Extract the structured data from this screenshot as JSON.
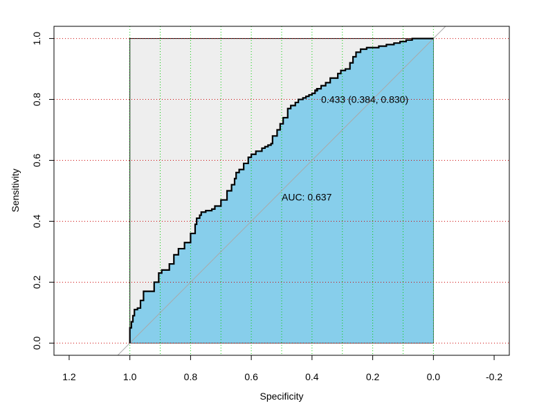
{
  "chart_data": {
    "type": "line",
    "title": "",
    "xlabel": "Specificity",
    "ylabel": "Sensitivity",
    "xlim": [
      1.25,
      -0.25
    ],
    "ylim": [
      -0.04,
      1.04
    ],
    "x_reversed": true,
    "x_ticks": [
      1.2,
      1.0,
      0.8,
      0.6,
      0.4,
      0.2,
      0.0,
      -0.2
    ],
    "x_tick_labels": [
      "1.2",
      "1.0",
      "0.8",
      "0.6",
      "0.4",
      "0.2",
      "0.0",
      "-0.2"
    ],
    "y_ticks": [
      0.0,
      0.2,
      0.4,
      0.6,
      0.8,
      1.0
    ],
    "y_tick_labels": [
      "0.0",
      "0.2",
      "0.4",
      "0.6",
      "0.8",
      "1.0"
    ],
    "grid": {
      "vertical": [
        1.0,
        0.9,
        0.8,
        0.7,
        0.6,
        0.5,
        0.4,
        0.3,
        0.2,
        0.1,
        0.0
      ],
      "horizontal": [
        0.0,
        0.2,
        0.4,
        0.6,
        0.8,
        1.0
      ],
      "vertical_color": "#00cc00",
      "horizontal_color": "#cc0000"
    },
    "colors": {
      "auc_fill": "#87CEEB",
      "bounding_fill": "#EEEEEE",
      "curve": "#000000",
      "diagonal": "#A9A9A9"
    },
    "series": [
      {
        "specificity": [
          1.0,
          1.0,
          0.995,
          0.99,
          0.985,
          0.975,
          0.965,
          0.955,
          0.94,
          0.92,
          0.905,
          0.895,
          0.87,
          0.855,
          0.84,
          0.82,
          0.8,
          0.785,
          0.78,
          0.77,
          0.765,
          0.75,
          0.73,
          0.72,
          0.7,
          0.68,
          0.665,
          0.655,
          0.65,
          0.64,
          0.625,
          0.61,
          0.6,
          0.585,
          0.565,
          0.555,
          0.545,
          0.535,
          0.53,
          0.515,
          0.505,
          0.495,
          0.48,
          0.47,
          0.455,
          0.445,
          0.43,
          0.42,
          0.41,
          0.4,
          0.39,
          0.384,
          0.37,
          0.355,
          0.34,
          0.325,
          0.315,
          0.305,
          0.29,
          0.275,
          0.265,
          0.255,
          0.24,
          0.22,
          0.2,
          0.18,
          0.155,
          0.13,
          0.11,
          0.09,
          0.07,
          0.05,
          0.03,
          0.0
        ],
        "sensitivity": [
          0.0,
          0.03,
          0.05,
          0.07,
          0.09,
          0.11,
          0.115,
          0.14,
          0.17,
          0.17,
          0.2,
          0.23,
          0.24,
          0.26,
          0.29,
          0.31,
          0.33,
          0.36,
          0.39,
          0.41,
          0.42,
          0.43,
          0.435,
          0.44,
          0.45,
          0.47,
          0.5,
          0.52,
          0.54,
          0.56,
          0.57,
          0.59,
          0.61,
          0.62,
          0.63,
          0.64,
          0.645,
          0.65,
          0.655,
          0.68,
          0.7,
          0.72,
          0.74,
          0.77,
          0.78,
          0.79,
          0.8,
          0.805,
          0.81,
          0.815,
          0.82,
          0.83,
          0.835,
          0.845,
          0.855,
          0.87,
          0.87,
          0.885,
          0.895,
          0.9,
          0.92,
          0.94,
          0.955,
          0.965,
          0.97,
          0.97,
          0.975,
          0.98,
          0.985,
          0.99,
          0.995,
          1.0,
          1.0,
          1.0
        ]
      }
    ],
    "threshold_point": {
      "specificity": 0.384,
      "sensitivity": 0.83
    },
    "annotations": [
      {
        "text": "0.433 (0.384, 0.830)",
        "x": 0.37,
        "y": 0.8
      },
      {
        "text": "AUC: 0.637",
        "x": 0.5,
        "y": 0.48
      }
    ]
  }
}
